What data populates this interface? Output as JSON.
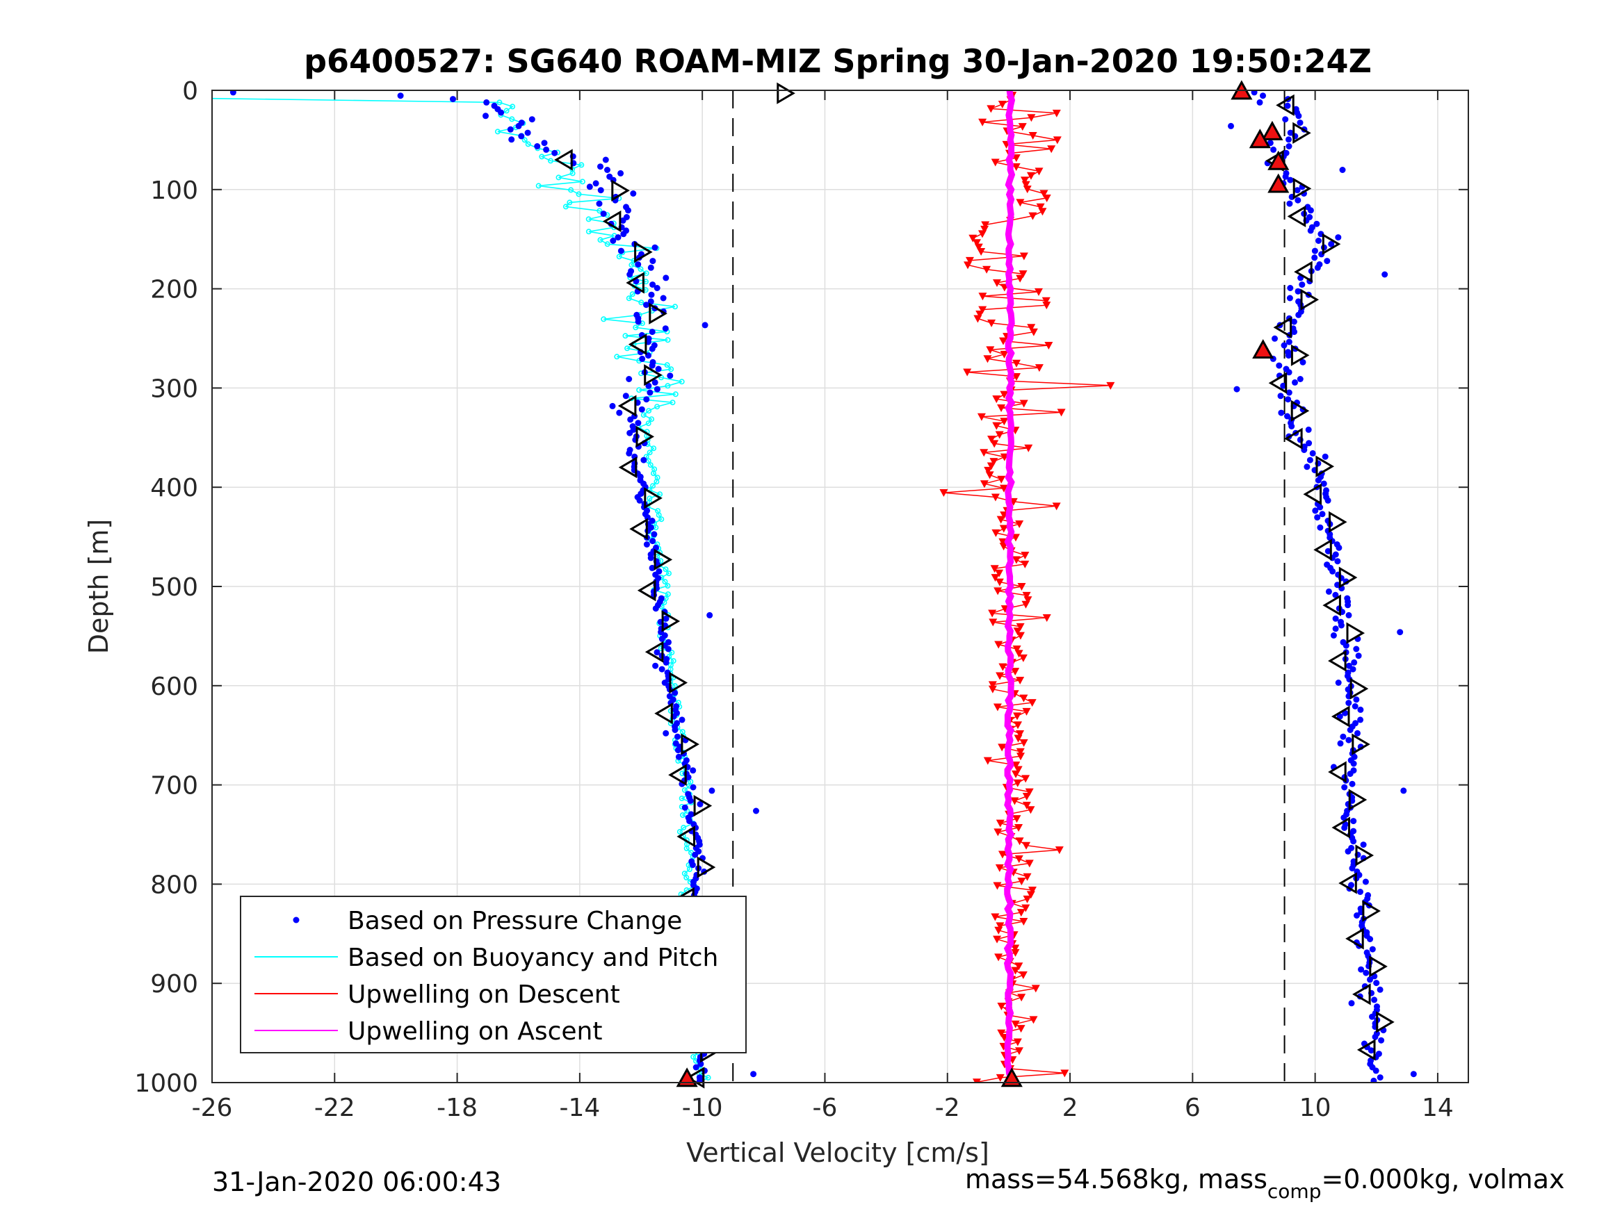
{
  "chart_data": {
    "type": "scatter",
    "title": "p6400527: SG640 ROAM-MIZ Spring 30-Jan-2020 19:50:24Z",
    "xlabel": "Vertical Velocity [cm/s]",
    "ylabel": "Depth [m]",
    "xlim": [
      -26,
      15
    ],
    "ylim": [
      0,
      1000
    ],
    "y_reversed": true,
    "grid": true,
    "x_ticks": [
      "-26",
      "-22",
      "-18",
      "-14",
      "-10",
      "-6",
      "-2",
      "2",
      "6",
      "10",
      "14"
    ],
    "y_ticks": [
      "0",
      "100",
      "200",
      "300",
      "400",
      "500",
      "600",
      "700",
      "800",
      "900",
      "1000"
    ],
    "reference_lines_x": [
      -9,
      9
    ],
    "legend_position": "bottom-left",
    "legend": [
      "Based on Pressure Change",
      "Based on Buoyancy and Pitch",
      "Upwelling on Descent",
      "Upwelling on Ascent"
    ],
    "colors": {
      "pressure": "#0000ff",
      "buoyancy": "#00ffff",
      "descent": "#ff0000",
      "ascent": "#ff00ff",
      "reference": "#000000"
    },
    "series": [
      {
        "name": "Based on Pressure Change",
        "dive_profile": {
          "depth": [
            2,
            5,
            10,
            20,
            30,
            50,
            70,
            80,
            90,
            100,
            110,
            120,
            140,
            160,
            180,
            200,
            220,
            240,
            260,
            280,
            300,
            330,
            360,
            400,
            450,
            500,
            550,
            600,
            650,
            700,
            750,
            800,
            850,
            900,
            950,
            1000
          ],
          "velocity": [
            -25,
            -20,
            -17.5,
            -16.5,
            -16.3,
            -15.5,
            -14.2,
            -13.5,
            -13,
            -13,
            -13,
            -12.8,
            -12.5,
            -12.3,
            -12,
            -11.8,
            -11.8,
            -11.7,
            -11.8,
            -11.9,
            -12,
            -12.2,
            -12.2,
            -12,
            -11.7,
            -11.5,
            -11.3,
            -11.1,
            -10.8,
            -10.4,
            -10.2,
            -10.2,
            -10.3,
            -10.2,
            -10.1,
            -10.1
          ]
        },
        "climb_profile": {
          "depth": [
            2,
            10,
            20,
            30,
            50,
            70,
            90,
            110,
            130,
            150,
            170,
            200,
            230,
            260,
            300,
            330,
            360,
            400,
            450,
            500,
            550,
            600,
            650,
            700,
            750,
            800,
            850,
            900,
            950,
            1000
          ],
          "velocity": [
            8,
            9.2,
            9.5,
            9.3,
            9.2,
            9,
            9.2,
            9.3,
            9.8,
            10.2,
            10.2,
            9.6,
            9.3,
            9.2,
            9.1,
            9.2,
            9.8,
            10.2,
            10.5,
            10.8,
            11.0,
            11.1,
            11.2,
            11.0,
            11.2,
            11.4,
            11.6,
            11.8,
            12,
            12
          ]
        }
      },
      {
        "name": "Based on Buoyancy and Pitch",
        "depth": [
          8,
          10,
          20,
          40,
          60,
          80,
          100,
          120,
          150,
          200,
          250,
          300,
          350,
          400,
          450,
          500,
          550,
          600,
          650,
          700,
          750,
          800,
          850,
          900,
          950,
          1000
        ],
        "velocity": [
          -26,
          -17,
          -16.5,
          -16.5,
          -15,
          -14.5,
          -14.3,
          -13.5,
          -13,
          -12,
          -11.8,
          -11.8,
          -11.8,
          -11.6,
          -11.5,
          -11.3,
          -11.2,
          -11,
          -10.8,
          -10.5,
          -10.5,
          -10.5,
          -10.4,
          -10.4,
          -10.3,
          -10
        ]
      },
      {
        "name": "Upwelling on Descent",
        "depth": [
          5,
          50,
          100,
          150,
          200,
          250,
          300,
          350,
          400,
          450,
          500,
          550,
          600,
          650,
          700,
          750,
          800,
          850,
          900,
          950,
          1000
        ],
        "velocity": [
          0.5,
          0.3,
          0.5,
          -0.5,
          0.2,
          0.3,
          -0.4,
          -0.3,
          -0.2,
          0.1,
          0.1,
          0.0,
          0.0,
          0.1,
          0.1,
          0.2,
          0.2,
          0.1,
          0.3,
          0.3,
          -0.5
        ]
      },
      {
        "name": "Upwelling on Ascent",
        "depth": [
          0,
          1000
        ],
        "velocity": [
          0.05,
          0.0
        ]
      }
    ]
  },
  "footer": {
    "timestamp": "31-Jan-2020 06:00:43",
    "mass_prefix": "mass=54.568kg, mass",
    "mass_sub": "comp",
    "mass_suffix": "=0.000kg, volmax"
  }
}
